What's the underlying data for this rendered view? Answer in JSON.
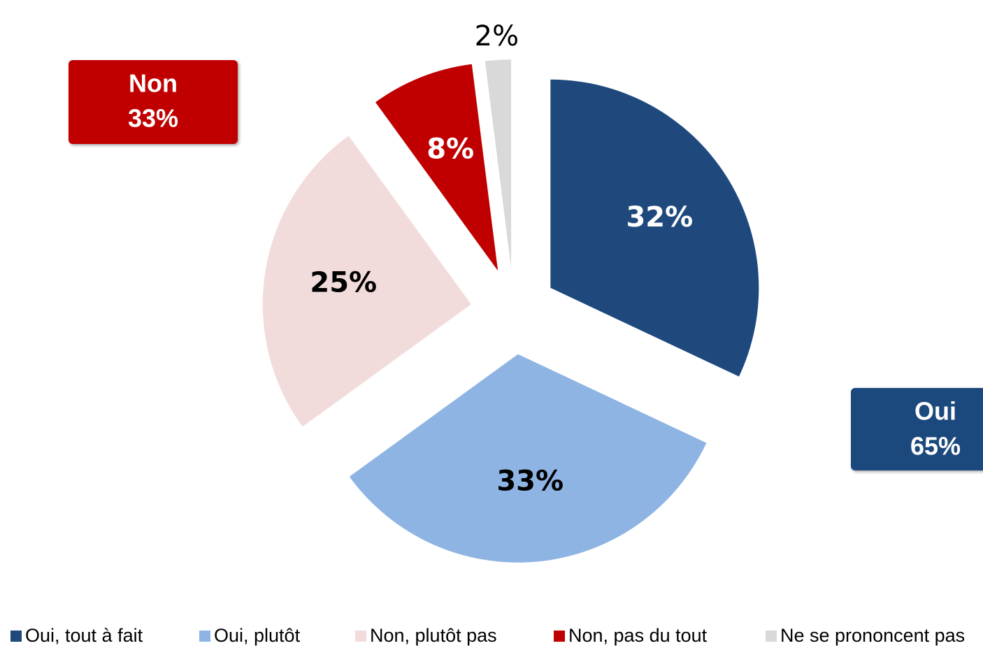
{
  "chart_data": {
    "type": "pie",
    "categories": [
      "Oui, tout à fait",
      "Oui, plutôt",
      "Non, plutôt pas",
      "Non, pas du tout",
      "Ne se prononcent pas"
    ],
    "values": [
      32,
      33,
      25,
      8,
      2
    ],
    "value_labels": [
      "32%",
      "33%",
      "25%",
      "8%",
      "2%"
    ],
    "colors": [
      "#1f497d",
      "#8eb4e3",
      "#f2dcdb",
      "#c00000",
      "#d9d9d9"
    ],
    "label_colors": [
      "#ffffff",
      "#000000",
      "#000000",
      "#ffffff",
      "#000000"
    ],
    "legend": "bottom",
    "group_totals": [
      {
        "name": "Non",
        "value": 33,
        "label": "33%",
        "color": "#c00000"
      },
      {
        "name": "Oui",
        "value": 65,
        "label": "65%",
        "color": "#1f497d"
      }
    ]
  }
}
